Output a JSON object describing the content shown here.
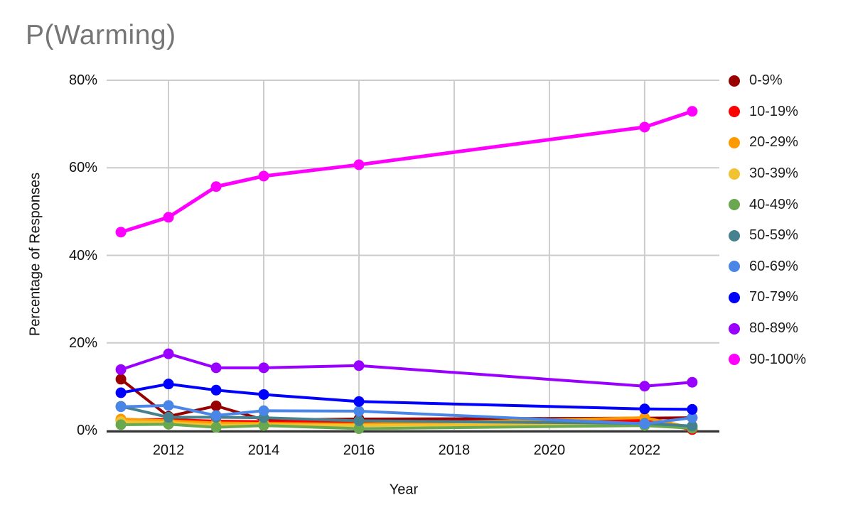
{
  "title": "P(Warming)",
  "chart_data": {
    "type": "line",
    "title": "P(Warming)",
    "xlabel": "Year",
    "ylabel": "Percentage of Responses",
    "x": [
      2011,
      2012,
      2013,
      2014,
      2016,
      2022,
      2023
    ],
    "x_ticks": [
      2012,
      2014,
      2016,
      2018,
      2020,
      2022
    ],
    "y_ticks": [
      0,
      20,
      40,
      60,
      80
    ],
    "y_tick_labels": [
      "0%",
      "20%",
      "40%",
      "60%",
      "80%"
    ],
    "xlim": [
      2010.7,
      2023.57
    ],
    "ylim": [
      0,
      80
    ],
    "grid": true,
    "legend_position": "right",
    "series": [
      {
        "name": "0-9%",
        "color": "#990000",
        "values": [
          11.7,
          3.2,
          5.6,
          2.4,
          2.6,
          2.8,
          2.9
        ]
      },
      {
        "name": "10-19%",
        "color": "#FF0000",
        "values": [
          2.4,
          2.5,
          2.1,
          2.0,
          2.0,
          2.2,
          0.2
        ]
      },
      {
        "name": "20-29%",
        "color": "#FF9900",
        "values": [
          2.6,
          2.2,
          1.7,
          1.6,
          1.4,
          2.9,
          0.6
        ]
      },
      {
        "name": "30-39%",
        "color": "#F1C232",
        "values": [
          2.0,
          1.8,
          1.2,
          1.3,
          1.1,
          1.6,
          0.9
        ]
      },
      {
        "name": "40-49%",
        "color": "#6AA84F",
        "values": [
          1.3,
          1.4,
          0.7,
          1.1,
          0.4,
          1.1,
          0.5
        ]
      },
      {
        "name": "50-59%",
        "color": "#45818E",
        "values": [
          5.5,
          3.0,
          3.0,
          2.9,
          2.2,
          1.6,
          1.0
        ]
      },
      {
        "name": "60-69%",
        "color": "#4A86E8",
        "values": [
          5.4,
          5.7,
          3.4,
          4.5,
          4.4,
          1.5,
          2.9
        ]
      },
      {
        "name": "70-79%",
        "color": "#0000FF",
        "values": [
          8.6,
          10.6,
          9.2,
          8.2,
          6.6,
          4.9,
          4.8
        ]
      },
      {
        "name": "80-89%",
        "color": "#9900FF",
        "values": [
          13.9,
          17.5,
          14.3,
          14.3,
          14.8,
          10.1,
          11.0
        ]
      },
      {
        "name": "90-100%",
        "color": "#FF00FF",
        "values": [
          45.3,
          48.7,
          55.7,
          58.1,
          60.7,
          69.3,
          72.9
        ]
      }
    ],
    "colors": {
      "gridline": "#CCCCCC",
      "axis_line": "#333333",
      "title_text": "#757575",
      "tick_text": "#111111"
    }
  }
}
